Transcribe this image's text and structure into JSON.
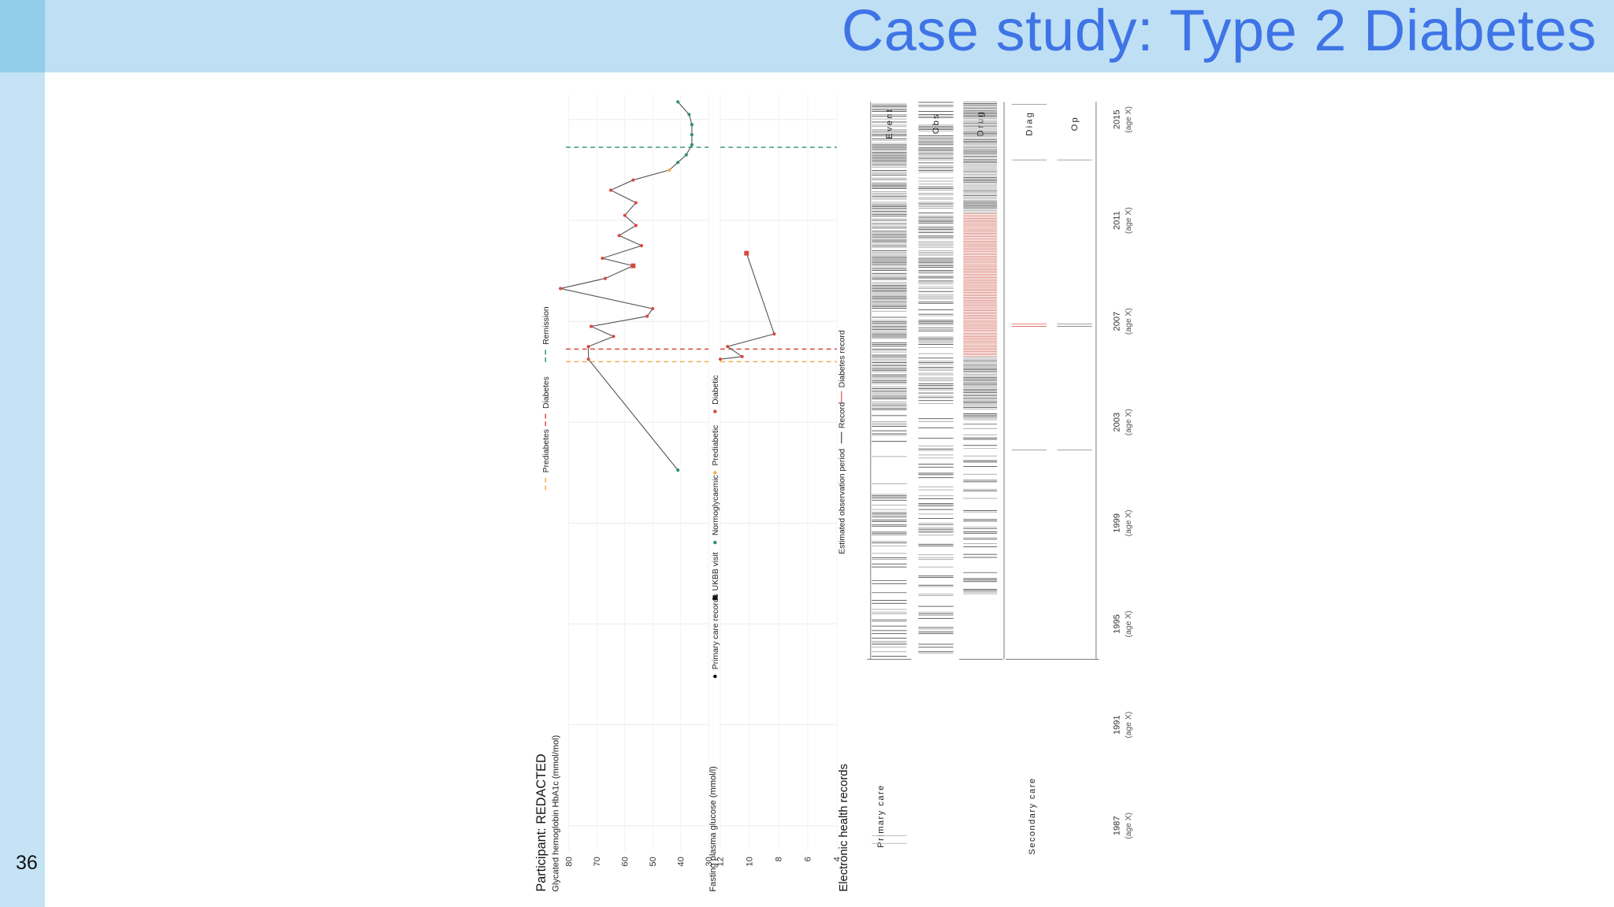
{
  "slide": {
    "title": "Case study: Type 2 Diabetes",
    "number": "36"
  },
  "figure": {
    "participant": "Participant: REDACTED",
    "x_ticks": [
      "1987",
      "1991",
      "1995",
      "1999",
      "2003",
      "2007",
      "2011",
      "2015"
    ],
    "age_label": "(age X)",
    "hba1c_axis": "Glycated hemoglobin HbA1c (mmol/mol)",
    "fpg_axis": "Fasting plasma glucose (mmol/l)",
    "ehr_label": "Electronic health records",
    "hba1c_ticks": [
      "30",
      "40",
      "50",
      "60",
      "70",
      "80"
    ],
    "fpg_ticks": [
      "4",
      "6",
      "8",
      "10",
      "12"
    ],
    "legend_points": [
      "Primary care records",
      "UKBB visit",
      "Normoglycaemic",
      "Prediabetic",
      "Diabetic"
    ],
    "legend_lines": [
      "Prediabetes",
      "Diabetes",
      "Remission"
    ],
    "legend_ehr": [
      "Estimated observation period",
      "Record",
      "Diabetes record"
    ],
    "care_groups": [
      "Secondary care",
      "Primary care"
    ],
    "ehr_rows": [
      "Op",
      "Diag",
      "Drug",
      "Obs",
      "Event"
    ]
  },
  "colors": {
    "title": "#3f74e6",
    "topbar": "#bfe0f4",
    "sidebar": "#c4e3f5",
    "diabetic": "#d9483b",
    "prediabetic": "#f2b04c",
    "normo": "#2f8f6f",
    "line": "#555555"
  },
  "chart_data": [
    {
      "type": "line",
      "title": "",
      "xlabel": "",
      "ylabel": "Glycated hemoglobin HbA1c (mmol/mol)",
      "ylim": [
        30,
        80
      ],
      "xlim": [
        1986,
        2016
      ],
      "series": [
        {
          "x": [
            2001.1,
            2005.5,
            2006.0,
            2006.4,
            2006.8,
            2007.2,
            2007.5,
            2008.3,
            2008.7,
            2009.2,
            2009.5,
            2010.0,
            2010.4,
            2010.8,
            2011.2,
            2011.7,
            2012.2,
            2012.6,
            2013.0,
            2013.3,
            2013.6,
            2014.0,
            2014.4,
            2014.8,
            2015.2,
            2015.7
          ],
          "y": [
            41,
            73,
            73,
            64,
            72,
            52,
            50,
            83,
            67,
            57,
            68,
            54,
            62,
            56,
            60,
            56,
            65,
            57,
            44,
            41,
            38,
            36,
            36,
            36,
            37,
            41
          ]
        }
      ]
    },
    {
      "type": "line",
      "title": "",
      "xlabel": "",
      "ylabel": "Fasting plasma glucose (mmol/l)",
      "ylim": [
        4,
        12
      ],
      "xlim": [
        1986,
        2016
      ],
      "series": [
        {
          "x": [
            2005.5,
            2005.6,
            2006.0,
            2006.5,
            2009.7
          ],
          "y": [
            12.0,
            10.5,
            11.5,
            8.3,
            10.2
          ]
        }
      ]
    }
  ]
}
